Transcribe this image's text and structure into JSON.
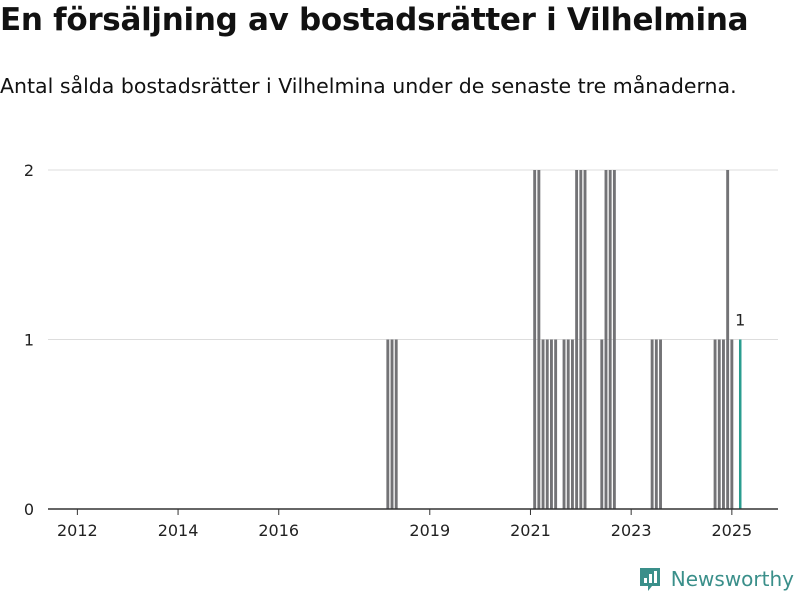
{
  "title": "En försäljning av bostadsrätter i Vilhelmina",
  "subtitle": "Antal sålda bostadsrätter i Vilhelmina under de senaste tre månaderna.",
  "brand": {
    "name": "Newsworthy",
    "icon": "newsworthy-logo-icon"
  },
  "colors": {
    "bar": "#737376",
    "highlight": "#2a9d8f",
    "grid": "#dddddd",
    "axis": "#333333"
  },
  "chart_data": {
    "type": "bar",
    "x_range": [
      "2011-06",
      "2025-12"
    ],
    "ylim": [
      0,
      2
    ],
    "yticks": [
      0,
      1,
      2
    ],
    "xticks": [
      "2012",
      "2014",
      "2016",
      "2019",
      "2021",
      "2023",
      "2025"
    ],
    "grid": true,
    "x": [
      "2018-03",
      "2018-04",
      "2018-05",
      "2021-02",
      "2021-03",
      "2021-04",
      "2021-05",
      "2021-06",
      "2021-07",
      "2021-09",
      "2021-10",
      "2021-11",
      "2021-12",
      "2022-01",
      "2022-02",
      "2022-06",
      "2022-07",
      "2022-08",
      "2022-09",
      "2023-06",
      "2023-07",
      "2023-08",
      "2024-09",
      "2024-10",
      "2024-11",
      "2024-12",
      "2025-01",
      "2025-03"
    ],
    "values": [
      1,
      1,
      1,
      2,
      2,
      1,
      1,
      1,
      1,
      1,
      1,
      1,
      2,
      2,
      2,
      1,
      2,
      2,
      2,
      1,
      1,
      1,
      1,
      1,
      1,
      2,
      1,
      1
    ],
    "highlight": {
      "x": "2025-03",
      "value": 1,
      "label": "1"
    }
  }
}
